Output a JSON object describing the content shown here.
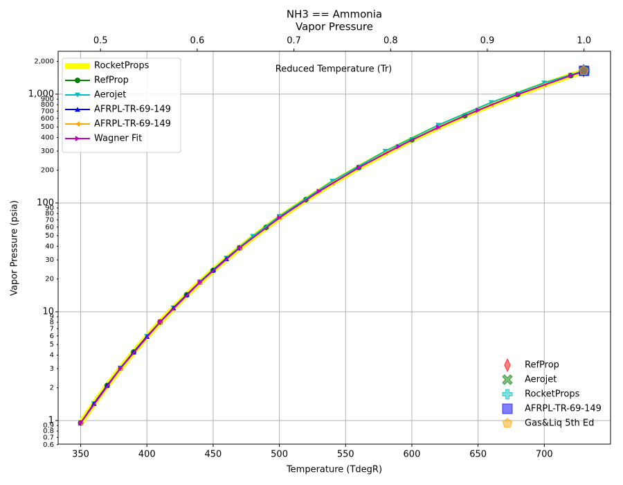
{
  "chart_data": {
    "type": "line",
    "title": "NH3 == Ammonia",
    "subtitle": "Vapor Pressure",
    "xlabel": "Temperature (TdegR)",
    "ylabel": "Vapor Pressure (psia)",
    "annotation": "Reduced Temperature (Tr)",
    "xlim": [
      333,
      750
    ],
    "xticks": [
      350,
      400,
      450,
      500,
      550,
      600,
      650,
      700
    ],
    "x2lim": [
      0.4562,
      1.0274
    ],
    "x2ticks": [
      0.5,
      0.6,
      0.7,
      0.8,
      0.9,
      {
        "value": 1,
        "label": "1.0"
      }
    ],
    "ylim": [
      0.607,
      2480
    ],
    "ylog": true,
    "yticks": [
      0.6,
      0.7,
      0.8,
      0.9,
      1,
      2,
      3,
      4,
      5,
      6,
      7,
      8,
      9,
      10,
      20,
      30,
      40,
      50,
      60,
      70,
      80,
      90,
      100,
      200,
      300,
      400,
      500,
      600,
      700,
      800,
      900,
      {
        "value": 1000,
        "label": "1,000"
      },
      {
        "value": 2000,
        "label": "2,000"
      }
    ],
    "grid": true,
    "legend": "upper left",
    "legend2": "lower right",
    "series": [
      {
        "name": "RocketProps",
        "color": "#ffff00",
        "mode": "line",
        "marker": "none",
        "linewidth": 8,
        "x": [
          350,
          360,
          370,
          380,
          390,
          400,
          410,
          420,
          430,
          440,
          450,
          460,
          470,
          480,
          490,
          500,
          520,
          540,
          560,
          580,
          600,
          620,
          640,
          660,
          680,
          700,
          720,
          730
        ],
        "values": [
          0.95,
          1.43,
          2.1,
          3.02,
          4.26,
          5.91,
          8.05,
          10.8,
          14.3,
          18.65,
          24.05,
          30.66,
          38.65,
          48.26,
          59.66,
          73.14,
          107.2,
          152.7,
          211.8,
          287.0,
          381.0,
          496.2,
          635.3,
          801.2,
          996,
          1222,
          1483,
          1627
        ]
      },
      {
        "name": "RefProp",
        "color": "#008000",
        "mode": "line",
        "marker": "circle",
        "linewidth": 2,
        "x": [
          350,
          370,
          390,
          410,
          430,
          450,
          470,
          490,
          520,
          560,
          600,
          640,
          680,
          720,
          730
        ],
        "values": [
          0.95,
          2.1,
          4.26,
          8.05,
          14.3,
          24.05,
          38.65,
          59.66,
          107.2,
          211.8,
          381.0,
          635.3,
          996,
          1483,
          1627
        ]
      },
      {
        "name": "Aerojet",
        "color": "#00bfbf",
        "mode": "line",
        "marker": "tri-down",
        "linewidth": 2,
        "x": [
          360,
          380,
          400,
          420,
          440,
          460,
          480,
          500,
          540,
          580,
          620,
          660,
          700,
          730
        ],
        "values": [
          1.43,
          3.05,
          5.95,
          10.9,
          18.9,
          31.2,
          49.5,
          75.5,
          159,
          300,
          520,
          840,
          1270,
          1640
        ]
      },
      {
        "name": "AFRPL-TR-69-149",
        "color": "#0000ff",
        "mode": "line",
        "marker": "tri-up",
        "linewidth": 2,
        "x": [
          350,
          360,
          370,
          380,
          390,
          400,
          410,
          420,
          430,
          440,
          450,
          460,
          470
        ],
        "values": [
          0.95,
          1.43,
          2.1,
          3.02,
          4.26,
          5.91,
          8.05,
          10.8,
          14.3,
          18.65,
          24.05,
          30.66,
          38.65
        ]
      },
      {
        "name": "AFRPL-TR-69-149",
        "color": "#ffa500",
        "mode": "line",
        "marker": "tri-left",
        "linewidth": 2,
        "x": [
          350,
          380,
          410,
          440,
          470,
          500,
          540,
          580,
          620,
          660,
          700,
          730
        ],
        "values": [
          0.95,
          3.02,
          8.05,
          18.65,
          38.65,
          73.14,
          152.7,
          287.0,
          496.2,
          801.2,
          1222,
          1627
        ]
      },
      {
        "name": "Wagner Fit",
        "color": "#bf00bf",
        "mode": "line",
        "marker": "tri-right",
        "linewidth": 2,
        "x": [
          350,
          380,
          410,
          440,
          470,
          500,
          530,
          560,
          590,
          620,
          650,
          680,
          720,
          730
        ],
        "values": [
          0.95,
          3.02,
          8.05,
          18.65,
          38.65,
          73.14,
          128,
          211.8,
          330,
          496.2,
          712,
          996,
          1483,
          1627
        ]
      },
      {
        "name": "RefProp",
        "color": "#ff0000",
        "mode": "scatter",
        "marker": "thin-diamond",
        "x": [
          729.7
        ],
        "values": [
          1646
        ]
      },
      {
        "name": "Aerojet",
        "color": "#008000",
        "mode": "scatter",
        "marker": "x",
        "x": [
          730
        ],
        "values": [
          1636
        ]
      },
      {
        "name": "RocketProps",
        "color": "#00bfbf",
        "mode": "scatter",
        "marker": "plus",
        "x": [
          730.5
        ],
        "values": [
          1650
        ]
      },
      {
        "name": "AFRPL-TR-69-149",
        "color": "#0000ff",
        "mode": "scatter",
        "marker": "square",
        "x": [
          730
        ],
        "values": [
          1640
        ]
      },
      {
        "name": "Gas&Liq 5th Ed",
        "color": "#ffa500",
        "mode": "scatter",
        "marker": "pentagon",
        "x": [
          729.8
        ],
        "values": [
          1645
        ]
      }
    ]
  }
}
